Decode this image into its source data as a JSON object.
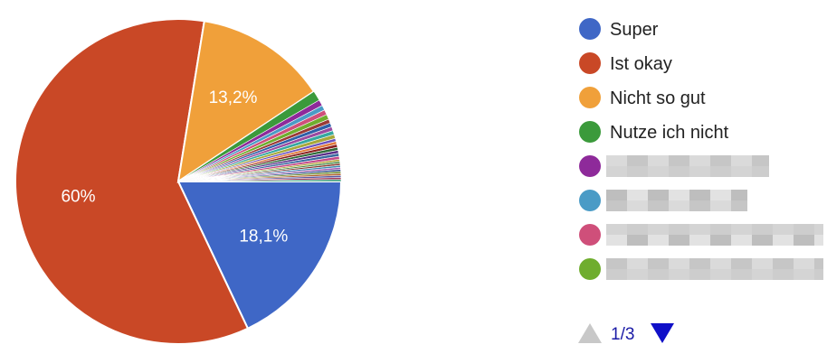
{
  "chart_data": {
    "type": "pie",
    "slices": [
      {
        "label": "Super",
        "value": 18.1,
        "value_label": "18,1%",
        "color": "#3f67c6"
      },
      {
        "label": "Ist okay",
        "value": 60.0,
        "value_label": "60%",
        "color": "#c94826"
      },
      {
        "label": "Nicht so gut",
        "value": 13.2,
        "value_label": "13,2%",
        "color": "#f0a03a"
      },
      {
        "label": "Nutze ich nicht",
        "value": 1.0,
        "value_label": "",
        "color": "#3b9a3b"
      },
      {
        "label": "",
        "value": 0.6,
        "value_label": "",
        "color": "#8e2a9a"
      },
      {
        "label": "",
        "value": 0.5,
        "value_label": "",
        "color": "#4a9bc6"
      },
      {
        "label": "",
        "value": 0.5,
        "value_label": "",
        "color": "#cf4f7a"
      },
      {
        "label": "",
        "value": 0.5,
        "value_label": "",
        "color": "#6fad2e"
      },
      {
        "label": "",
        "value": 0.4,
        "value_label": "",
        "color": "#9b3a35"
      },
      {
        "label": "",
        "value": 0.4,
        "value_label": "",
        "color": "#2f5fa8"
      },
      {
        "label": "",
        "value": 0.4,
        "value_label": "",
        "color": "#9a4aa0"
      },
      {
        "label": "",
        "value": 0.4,
        "value_label": "",
        "color": "#36a8a0"
      },
      {
        "label": "",
        "value": 0.4,
        "value_label": "",
        "color": "#a8a83a"
      },
      {
        "label": "",
        "value": 0.3,
        "value_label": "",
        "color": "#6a52c0"
      },
      {
        "label": "",
        "value": 0.3,
        "value_label": "",
        "color": "#e07a3a"
      },
      {
        "label": "",
        "value": 0.3,
        "value_label": "",
        "color": "#8a1f1f"
      },
      {
        "label": "",
        "value": 0.3,
        "value_label": "",
        "color": "#2f6b3a"
      },
      {
        "label": "",
        "value": 0.3,
        "value_label": "",
        "color": "#5a2f8a"
      },
      {
        "label": "",
        "value": 0.3,
        "value_label": "",
        "color": "#3a6aa0"
      },
      {
        "label": "",
        "value": 0.3,
        "value_label": "",
        "color": "#c44a8a"
      },
      {
        "label": "",
        "value": 0.2,
        "value_label": "",
        "color": "#b0a030"
      },
      {
        "label": "",
        "value": 0.2,
        "value_label": "",
        "color": "#4a8a4a"
      },
      {
        "label": "",
        "value": 0.2,
        "value_label": "",
        "color": "#8a3a30"
      },
      {
        "label": "",
        "value": 0.2,
        "value_label": "",
        "color": "#3a8ab0"
      },
      {
        "label": "",
        "value": 0.2,
        "value_label": "",
        "color": "#a05ab0"
      },
      {
        "label": "",
        "value": 0.2,
        "value_label": "",
        "color": "#2a4a8a"
      },
      {
        "label": "",
        "value": 0.2,
        "value_label": "",
        "color": "#6a8a2a"
      },
      {
        "label": "",
        "value": 0.2,
        "value_label": "",
        "color": "#b0602a"
      },
      {
        "label": "",
        "value": 0.2,
        "value_label": "",
        "color": "#5a5aa0"
      },
      {
        "label": "",
        "value": 0.2,
        "value_label": "",
        "color": "#a03a5a"
      },
      {
        "label": "",
        "value": 0.2,
        "value_label": "",
        "color": "#3a9a7a"
      }
    ],
    "legend": {
      "placement": "right",
      "visible_count": 8,
      "marker_colors": [
        "#3f67c6",
        "#c94826",
        "#f0a03a",
        "#3b9a3b",
        "#8e2a9a",
        "#4a9bc6",
        "#cf4f7a",
        "#6fad2e"
      ],
      "labels": [
        "Super",
        "Ist okay",
        "Nicht so gut",
        "Nutze ich nicht"
      ],
      "blurred_entries": 4
    }
  },
  "pagination": {
    "text": "1/3",
    "prev_color": "#c8c8c8",
    "next_color": "#1010c8"
  }
}
